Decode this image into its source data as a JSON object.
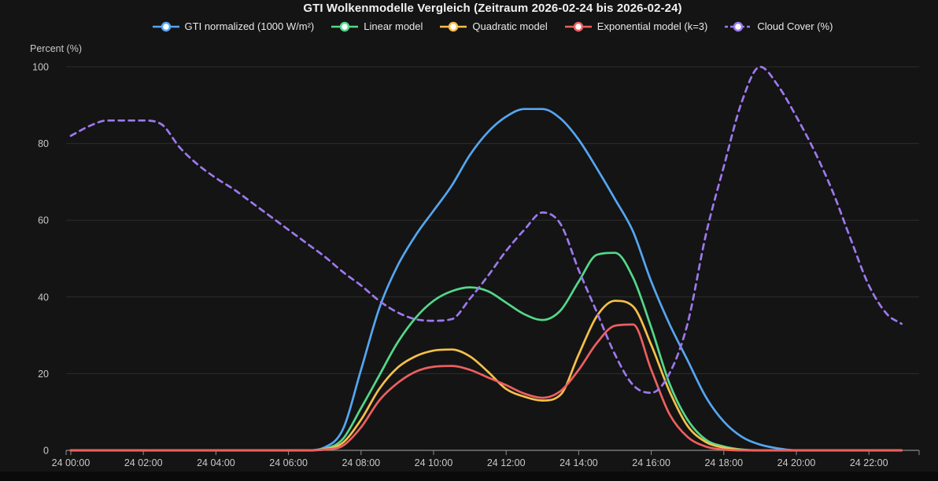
{
  "title": "GTI Wolkenmodelle Vergleich (Zeitraum 2026-02-24 bis 2026-02-24)",
  "colors": {
    "background": "#141414",
    "bottom_strip": "#0a0a0a",
    "grid": "#2c2c2c",
    "axis": "#8c8c8c",
    "tick_text": "#c8c8c8",
    "title_text": "#f0f0f0",
    "legend_text": "#e8e8e8",
    "marker_fill": "#ffffff"
  },
  "chart_data": {
    "type": "line",
    "title": "GTI Wolkenmodelle Vergleich (Zeitraum 2026-02-24 bis 2026-02-24)",
    "ylabel": "Percent (%)",
    "xlabel": "",
    "ylim": [
      0,
      100
    ],
    "y_ticks": [
      0,
      20,
      40,
      60,
      80,
      100
    ],
    "x_tick_hours": [
      0,
      2,
      4,
      6,
      8,
      10,
      12,
      14,
      16,
      18,
      20,
      22
    ],
    "x_tick_labels": [
      "24 00:00",
      "24 02:00",
      "24 04:00",
      "24 06:00",
      "24 08:00",
      "24 10:00",
      "24 12:00",
      "24 14:00",
      "24 16:00",
      "24 18:00",
      "24 20:00",
      "24 22:00"
    ],
    "grid": "horizontal-only",
    "legend_position": "top",
    "x_hours": [
      0,
      0.5,
      1,
      1.5,
      2,
      2.5,
      3,
      3.5,
      4,
      4.5,
      5,
      5.5,
      6,
      6.5,
      7,
      7.5,
      8,
      8.5,
      9,
      9.5,
      10,
      10.5,
      11,
      11.5,
      12,
      12.5,
      13,
      13.5,
      14,
      14.5,
      15,
      15.5,
      16,
      16.5,
      17,
      17.5,
      18,
      18.5,
      19,
      19.5,
      20,
      20.5,
      21,
      21.5,
      22,
      22.5,
      22.9
    ],
    "series": [
      {
        "name": "GTI normalized (1000 W/m²)",
        "color": "#55a6f1",
        "dashed": false,
        "values": [
          0,
          0,
          0,
          0,
          0,
          0,
          0,
          0,
          0,
          0,
          0,
          0,
          0,
          0,
          0.8,
          5.5,
          21,
          37,
          48,
          56,
          62.5,
          69,
          77,
          83,
          87,
          89,
          89,
          86.5,
          81,
          73.5,
          65.5,
          57,
          44,
          33,
          23.5,
          14,
          7.5,
          3.5,
          1.5,
          0.5,
          0,
          0,
          0,
          0,
          0,
          0,
          0
        ]
      },
      {
        "name": "Linear model",
        "color": "#53d88a",
        "dashed": false,
        "values": [
          0,
          0,
          0,
          0,
          0,
          0,
          0,
          0,
          0,
          0,
          0,
          0,
          0,
          0,
          0.4,
          3,
          11,
          19.5,
          28,
          34.5,
          39,
          41.5,
          42.5,
          41.5,
          38.5,
          35.5,
          34,
          36.5,
          44,
          51,
          51.5,
          45,
          32,
          17.5,
          8,
          2.8,
          1,
          0.2,
          0,
          0,
          0,
          0,
          0,
          0,
          0,
          0,
          0
        ]
      },
      {
        "name": "Quadratic model",
        "color": "#f5c04a",
        "dashed": false,
        "values": [
          0,
          0,
          0,
          0,
          0,
          0,
          0,
          0,
          0,
          0,
          0,
          0,
          0,
          0,
          0.3,
          2,
          8,
          16,
          21.5,
          24.5,
          26,
          26.3,
          24.5,
          20.5,
          16,
          14,
          13,
          14.5,
          25,
          35,
          39,
          37.5,
          27.5,
          15.5,
          6.4,
          2.2,
          0.7,
          0.1,
          0,
          0,
          0,
          0,
          0,
          0,
          0,
          0,
          0
        ]
      },
      {
        "name": "Exponential model (k=3)",
        "color": "#ec5f5f",
        "dashed": false,
        "values": [
          0,
          0,
          0,
          0,
          0,
          0,
          0,
          0,
          0,
          0,
          0,
          0,
          0,
          0,
          0.2,
          1.2,
          6,
          13,
          17.5,
          20.5,
          21.8,
          22,
          21,
          19,
          17,
          14.8,
          13.7,
          15.5,
          21,
          28,
          32.5,
          32.8,
          21,
          9.5,
          3.5,
          1,
          0.2,
          0,
          0,
          0,
          0,
          0,
          0,
          0,
          0,
          0,
          0
        ]
      },
      {
        "name": "Cloud Cover (%)",
        "color": "#9d78ee",
        "dashed": true,
        "values": [
          82,
          84.5,
          86,
          86,
          86,
          85,
          79,
          74.5,
          71,
          68,
          64.5,
          61,
          57.5,
          54,
          50.5,
          46.5,
          43,
          39,
          36,
          34.2,
          33.8,
          34.2,
          39.5,
          45.5,
          52,
          57.5,
          62,
          59,
          47,
          36,
          25,
          17,
          15,
          20,
          33,
          56,
          74,
          91,
          100,
          95,
          87,
          78,
          67.5,
          55,
          43,
          35.5,
          33
        ]
      }
    ]
  }
}
